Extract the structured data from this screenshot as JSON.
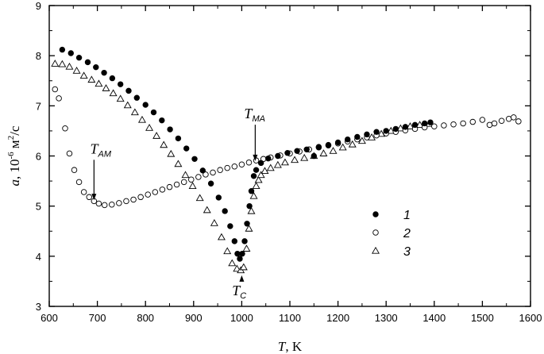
{
  "chart_data": {
    "type": "scatter",
    "title": "",
    "xlabel": {
      "var": "T",
      "unit": ", K"
    },
    "ylabel": {
      "var": "a",
      "unit": ", 10",
      "exp": "-6",
      "unit2": " м",
      "exp2": "2",
      "unit3": "/с"
    },
    "xlim": [
      600,
      1600
    ],
    "ylim": [
      3,
      9
    ],
    "xticks": [
      600,
      700,
      800,
      900,
      1000,
      1100,
      1200,
      1300,
      1400,
      1500,
      1600
    ],
    "yticks": [
      3,
      4,
      5,
      6,
      7,
      8,
      9
    ],
    "grid": false,
    "legend_position": "center-right",
    "series": [
      {
        "name": "1",
        "marker": "filled-circle",
        "points": [
          [
            627,
            8.12
          ],
          [
            645,
            8.05
          ],
          [
            662,
            7.96
          ],
          [
            680,
            7.87
          ],
          [
            697,
            7.77
          ],
          [
            714,
            7.66
          ],
          [
            731,
            7.55
          ],
          [
            748,
            7.43
          ],
          [
            765,
            7.3
          ],
          [
            782,
            7.16
          ],
          [
            800,
            7.02
          ],
          [
            817,
            6.87
          ],
          [
            834,
            6.71
          ],
          [
            851,
            6.53
          ],
          [
            868,
            6.35
          ],
          [
            885,
            6.15
          ],
          [
            902,
            5.94
          ],
          [
            919,
            5.71
          ],
          [
            936,
            5.45
          ],
          [
            952,
            5.17
          ],
          [
            965,
            4.9
          ],
          [
            976,
            4.6
          ],
          [
            985,
            4.3
          ],
          [
            991,
            4.05
          ],
          [
            996,
            3.95
          ],
          [
            1001,
            4.05
          ],
          [
            1006,
            4.3
          ],
          [
            1011,
            4.65
          ],
          [
            1016,
            5.0
          ],
          [
            1020,
            5.3
          ],
          [
            1025,
            5.6
          ],
          [
            1030,
            5.72
          ],
          [
            1040,
            5.86
          ],
          [
            1055,
            5.95
          ],
          [
            1075,
            6.0
          ],
          [
            1095,
            6.06
          ],
          [
            1115,
            6.1
          ],
          [
            1135,
            6.13
          ],
          [
            1150,
            6.0
          ],
          [
            1160,
            6.18
          ],
          [
            1180,
            6.22
          ],
          [
            1200,
            6.27
          ],
          [
            1220,
            6.33
          ],
          [
            1240,
            6.38
          ],
          [
            1260,
            6.43
          ],
          [
            1280,
            6.48
          ],
          [
            1300,
            6.5
          ],
          [
            1320,
            6.54
          ],
          [
            1340,
            6.58
          ],
          [
            1360,
            6.62
          ],
          [
            1380,
            6.65
          ],
          [
            1392,
            6.67
          ]
        ]
      },
      {
        "name": "2",
        "marker": "open-circle",
        "points": [
          [
            612,
            7.33
          ],
          [
            620,
            7.15
          ],
          [
            633,
            6.55
          ],
          [
            642,
            6.05
          ],
          [
            652,
            5.72
          ],
          [
            662,
            5.48
          ],
          [
            672,
            5.28
          ],
          [
            683,
            5.18
          ],
          [
            693,
            5.1
          ],
          [
            703,
            5.05
          ],
          [
            715,
            5.02
          ],
          [
            730,
            5.03
          ],
          [
            745,
            5.06
          ],
          [
            760,
            5.1
          ],
          [
            775,
            5.13
          ],
          [
            790,
            5.18
          ],
          [
            805,
            5.23
          ],
          [
            820,
            5.28
          ],
          [
            835,
            5.33
          ],
          [
            850,
            5.38
          ],
          [
            865,
            5.43
          ],
          [
            880,
            5.48
          ],
          [
            895,
            5.53
          ],
          [
            910,
            5.58
          ],
          [
            925,
            5.63
          ],
          [
            940,
            5.67
          ],
          [
            955,
            5.72
          ],
          [
            970,
            5.76
          ],
          [
            985,
            5.79
          ],
          [
            1000,
            5.83
          ],
          [
            1015,
            5.87
          ],
          [
            1030,
            5.91
          ],
          [
            1045,
            5.94
          ],
          [
            1060,
            5.97
          ],
          [
            1080,
            6.01
          ],
          [
            1100,
            6.05
          ],
          [
            1120,
            6.09
          ],
          [
            1140,
            6.13
          ],
          [
            1160,
            6.17
          ],
          [
            1180,
            6.21
          ],
          [
            1200,
            6.25
          ],
          [
            1220,
            6.29
          ],
          [
            1240,
            6.33
          ],
          [
            1260,
            6.37
          ],
          [
            1280,
            6.41
          ],
          [
            1300,
            6.45
          ],
          [
            1320,
            6.48
          ],
          [
            1340,
            6.51
          ],
          [
            1360,
            6.54
          ],
          [
            1380,
            6.57
          ],
          [
            1400,
            6.59
          ],
          [
            1420,
            6.61
          ],
          [
            1440,
            6.63
          ],
          [
            1460,
            6.65
          ],
          [
            1480,
            6.68
          ],
          [
            1500,
            6.72
          ],
          [
            1515,
            6.62
          ],
          [
            1525,
            6.65
          ],
          [
            1540,
            6.7
          ],
          [
            1555,
            6.74
          ],
          [
            1565,
            6.77
          ],
          [
            1575,
            6.69
          ]
        ]
      },
      {
        "name": "3",
        "marker": "open-triangle",
        "points": [
          [
            612,
            7.84
          ],
          [
            627,
            7.83
          ],
          [
            642,
            7.78
          ],
          [
            657,
            7.7
          ],
          [
            672,
            7.6
          ],
          [
            688,
            7.52
          ],
          [
            703,
            7.44
          ],
          [
            718,
            7.35
          ],
          [
            733,
            7.25
          ],
          [
            748,
            7.14
          ],
          [
            763,
            7.01
          ],
          [
            778,
            6.87
          ],
          [
            793,
            6.72
          ],
          [
            808,
            6.56
          ],
          [
            823,
            6.4
          ],
          [
            838,
            6.22
          ],
          [
            853,
            6.04
          ],
          [
            868,
            5.84
          ],
          [
            883,
            5.62
          ],
          [
            898,
            5.4
          ],
          [
            913,
            5.16
          ],
          [
            928,
            4.92
          ],
          [
            943,
            4.66
          ],
          [
            958,
            4.38
          ],
          [
            970,
            4.1
          ],
          [
            980,
            3.86
          ],
          [
            990,
            3.75
          ],
          [
            998,
            3.72
          ],
          [
            1004,
            3.78
          ],
          [
            1010,
            4.15
          ],
          [
            1015,
            4.55
          ],
          [
            1020,
            4.9
          ],
          [
            1025,
            5.2
          ],
          [
            1030,
            5.4
          ],
          [
            1035,
            5.52
          ],
          [
            1040,
            5.62
          ],
          [
            1048,
            5.7
          ],
          [
            1060,
            5.76
          ],
          [
            1075,
            5.82
          ],
          [
            1090,
            5.87
          ],
          [
            1110,
            5.92
          ],
          [
            1130,
            5.96
          ],
          [
            1150,
            6.0
          ],
          [
            1170,
            6.05
          ],
          [
            1190,
            6.1
          ],
          [
            1210,
            6.17
          ],
          [
            1230,
            6.23
          ],
          [
            1250,
            6.3
          ],
          [
            1270,
            6.37
          ],
          [
            1290,
            6.44
          ],
          [
            1310,
            6.5
          ],
          [
            1330,
            6.55
          ],
          [
            1350,
            6.59
          ],
          [
            1370,
            6.62
          ],
          [
            1390,
            6.64
          ]
        ]
      }
    ],
    "annotations": [
      {
        "name": "T_AM",
        "main": "T",
        "sub": "AM",
        "x": 693,
        "y": 5.12,
        "label_x": 685,
        "label_y": 6.05,
        "arrow": "down"
      },
      {
        "name": "T_MA",
        "main": "T",
        "sub": "MA",
        "x": 1028,
        "y": 5.9,
        "label_x": 1005,
        "label_y": 6.75,
        "arrow": "down"
      },
      {
        "name": "T_C",
        "main": "T",
        "sub": "C",
        "x": 1000,
        "y": 3.62,
        "label_x": 980,
        "label_y": 3.22,
        "arrow": "up"
      }
    ]
  }
}
